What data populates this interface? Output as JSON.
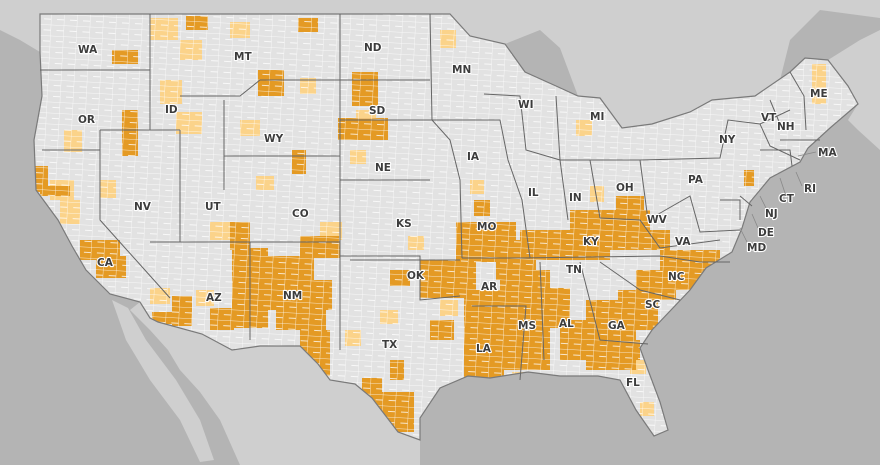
{
  "colors": {
    "water": "#b4b4b4",
    "land_outside": "#cfcfcf",
    "us_land": "#e2e2e2",
    "county_border": "#ffffff",
    "state_border": "#666666",
    "high": "#e49a24",
    "medium": "#fbd38a"
  },
  "states": {
    "WA": "WA",
    "OR": "OR",
    "CA": "CA",
    "NV": "NV",
    "ID": "ID",
    "MT": "MT",
    "WY": "WY",
    "UT": "UT",
    "AZ": "AZ",
    "CO": "CO",
    "NM": "NM",
    "ND": "ND",
    "SD": "SD",
    "NE": "NE",
    "KS": "KS",
    "OK": "OK",
    "TX": "TX",
    "MN": "MN",
    "IA": "IA",
    "MO": "MO",
    "AR": "AR",
    "LA": "LA",
    "WI": "WI",
    "IL": "IL",
    "MS": "MS",
    "MI": "MI",
    "IN": "IN",
    "KY": "KY",
    "TN": "TN",
    "AL": "AL",
    "OH": "OH",
    "GA": "GA",
    "FL": "FL",
    "SC": "SC",
    "NC": "NC",
    "VA": "VA",
    "WV": "WV",
    "PA": "PA",
    "NY": "NY",
    "VT": "VT",
    "NH": "NH",
    "ME": "ME",
    "MA": "MA",
    "RI": "RI",
    "CT": "CT",
    "NJ": "NJ",
    "DE": "DE",
    "MD": "MD"
  }
}
